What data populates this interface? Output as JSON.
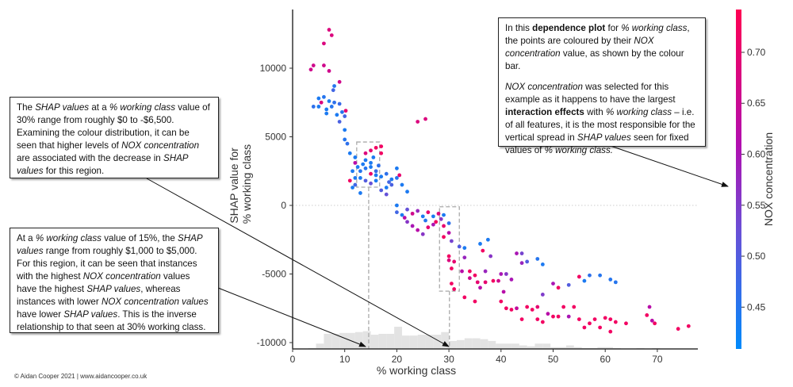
{
  "chart_data": {
    "type": "scatter",
    "xlabel": "% working class",
    "ylabel": [
      "SHAP value for",
      "% working class"
    ],
    "xlim": [
      0,
      80
    ],
    "ylim": [
      -10900,
      14000
    ],
    "xticks": [
      0,
      10,
      20,
      30,
      40,
      50,
      60,
      70
    ],
    "yticks": [
      -10000,
      -5000,
      0,
      5000,
      10000
    ],
    "zero_line": true,
    "colorbar": {
      "label": "NOX concentration",
      "range": [
        0.409,
        0.742
      ],
      "ticks": [
        0.45,
        0.5,
        0.55,
        0.6,
        0.65,
        0.7
      ],
      "colors": [
        "#008afb",
        "#6a4fd6",
        "#b10fb0",
        "#ff0052"
      ]
    },
    "histogram": {
      "color": "#e3e3e3",
      "bin_width": 1.5,
      "bins": [
        [
          3,
          1
        ],
        [
          4.5,
          6
        ],
        [
          6,
          17
        ],
        [
          7.5,
          17
        ],
        [
          9,
          18
        ],
        [
          10.5,
          18
        ],
        [
          12,
          19
        ],
        [
          13.5,
          20
        ],
        [
          15,
          16
        ],
        [
          16.5,
          17
        ],
        [
          18,
          17
        ],
        [
          19.5,
          25
        ],
        [
          21,
          15
        ],
        [
          22.5,
          15
        ],
        [
          24,
          16
        ],
        [
          25.5,
          16
        ],
        [
          27,
          16
        ],
        [
          28.5,
          19
        ],
        [
          30,
          9
        ],
        [
          31.5,
          10
        ],
        [
          33,
          12
        ],
        [
          34.5,
          12
        ],
        [
          36,
          11
        ],
        [
          37.5,
          9
        ],
        [
          39,
          6
        ],
        [
          40.5,
          6
        ],
        [
          42,
          6
        ],
        [
          43.5,
          4
        ],
        [
          45,
          3
        ],
        [
          46.5,
          6
        ],
        [
          48,
          6
        ],
        [
          49.5,
          2
        ],
        [
          51,
          2
        ],
        [
          52.5,
          4
        ],
        [
          54,
          2
        ],
        [
          55.5,
          1
        ],
        [
          57,
          1
        ],
        [
          58.5,
          2
        ],
        [
          60,
          2
        ],
        [
          61.5,
          1
        ],
        [
          66,
          1
        ],
        [
          69,
          1
        ]
      ]
    },
    "highlight_regions": [
      {
        "x": [
          12.3,
          16.7
        ],
        "y": [
          1330,
          4620
        ],
        "marker_x": 14.6
      },
      {
        "x": [
          28.2,
          32.0
        ],
        "y": [
          -6250,
          -100
        ],
        "marker_x": 30.1
      }
    ],
    "points_format": [
      "% working class",
      "SHAP value",
      "NOX concentration"
    ],
    "points": [
      [
        7,
        12800,
        0.68
      ],
      [
        6,
        11800,
        0.68
      ],
      [
        7.5,
        12400,
        0.68
      ],
      [
        4,
        10200,
        0.66
      ],
      [
        3.5,
        9900,
        0.66
      ],
      [
        6,
        10200,
        0.66
      ],
      [
        7,
        9800,
        0.66
      ],
      [
        9,
        9000,
        0.66
      ],
      [
        5,
        7800,
        0.44
      ],
      [
        6,
        7900,
        0.45
      ],
      [
        7,
        7600,
        0.44
      ],
      [
        8,
        7500,
        0.46
      ],
      [
        6.5,
        7000,
        0.44
      ],
      [
        7.5,
        7200,
        0.45
      ],
      [
        5,
        7200,
        0.44
      ],
      [
        4,
        7200,
        0.46
      ],
      [
        9,
        7400,
        0.47
      ],
      [
        9.5,
        6800,
        0.45
      ],
      [
        8.5,
        6600,
        0.44
      ],
      [
        10,
        6500,
        0.48
      ],
      [
        9,
        6100,
        0.49
      ],
      [
        10,
        5500,
        0.44
      ],
      [
        10,
        4800,
        0.45
      ],
      [
        10.5,
        4500,
        0.46
      ],
      [
        7.8,
        8400,
        0.48
      ],
      [
        8,
        8700,
        0.45
      ],
      [
        6.5,
        6700,
        0.44
      ],
      [
        5.5,
        7500,
        0.68
      ],
      [
        10.2,
        6900,
        0.7
      ],
      [
        11,
        3800,
        0.44
      ],
      [
        12,
        3500,
        0.44
      ],
      [
        12,
        3100,
        0.62
      ],
      [
        11.5,
        2500,
        0.44
      ],
      [
        12,
        2000,
        0.44
      ],
      [
        13,
        2500,
        0.45
      ],
      [
        14,
        2700,
        0.45
      ],
      [
        15,
        2800,
        0.44
      ],
      [
        16,
        2500,
        0.47
      ],
      [
        17,
        2100,
        0.44
      ],
      [
        14,
        1800,
        0.5
      ],
      [
        13,
        2000,
        0.44
      ],
      [
        15,
        1600,
        0.52
      ],
      [
        16,
        1800,
        0.44
      ],
      [
        18,
        2300,
        0.46
      ],
      [
        19,
        1900,
        0.44
      ],
      [
        20,
        2000,
        0.45
      ],
      [
        19,
        1500,
        0.49
      ],
      [
        18,
        1300,
        0.44
      ],
      [
        17,
        1100,
        0.5
      ],
      [
        12,
        1500,
        0.48
      ],
      [
        11.5,
        1300,
        0.44
      ],
      [
        14,
        3300,
        0.44
      ],
      [
        15.5,
        3500,
        0.44
      ],
      [
        16,
        4200,
        0.72
      ],
      [
        15,
        4000,
        0.7
      ],
      [
        17,
        4300,
        0.72
      ],
      [
        17,
        3800,
        0.72
      ],
      [
        14,
        3800,
        0.68
      ],
      [
        15,
        2300,
        0.71
      ],
      [
        13,
        900,
        0.44
      ],
      [
        18,
        800,
        0.52
      ],
      [
        20,
        2700,
        0.44
      ],
      [
        20.5,
        2200,
        0.7
      ],
      [
        21,
        1500,
        0.44
      ],
      [
        22,
        1000,
        0.44
      ],
      [
        15,
        3100,
        0.44
      ],
      [
        16.5,
        2900,
        0.46
      ],
      [
        18.5,
        1700,
        0.48
      ],
      [
        11,
        1800,
        0.72
      ],
      [
        13.5,
        3000,
        0.44
      ],
      [
        16,
        2200,
        0.44
      ],
      [
        12.5,
        2800,
        0.44
      ],
      [
        24,
        6100,
        0.68
      ],
      [
        25.5,
        6300,
        0.68
      ],
      [
        20,
        0,
        0.44
      ],
      [
        20,
        -500,
        0.48
      ],
      [
        21,
        -700,
        0.44
      ],
      [
        22,
        -300,
        0.52
      ],
      [
        21.5,
        -900,
        0.62
      ],
      [
        23,
        -600,
        0.66
      ],
      [
        24,
        -400,
        0.58
      ],
      [
        25,
        -800,
        0.44
      ],
      [
        25.5,
        -1100,
        0.45
      ],
      [
        26,
        -500,
        0.7
      ],
      [
        27,
        -800,
        0.44
      ],
      [
        27,
        -1400,
        0.6
      ],
      [
        28,
        -600,
        0.68
      ],
      [
        28.5,
        -1000,
        0.56
      ],
      [
        29,
        -700,
        0.44
      ],
      [
        22,
        -1200,
        0.56
      ],
      [
        23,
        -1500,
        0.6
      ],
      [
        24,
        -1800,
        0.62
      ],
      [
        25,
        -2100,
        0.56
      ],
      [
        26,
        -1600,
        0.7
      ],
      [
        27.5,
        -1200,
        0.72
      ],
      [
        29,
        -1500,
        0.7
      ],
      [
        30,
        -1300,
        0.46
      ],
      [
        30,
        -2000,
        0.62
      ],
      [
        29,
        -2300,
        0.72
      ],
      [
        30.5,
        -2600,
        0.54
      ],
      [
        30,
        -3700,
        0.72
      ],
      [
        30,
        -4000,
        0.68
      ],
      [
        30.5,
        -4600,
        0.72
      ],
      [
        31,
        -4100,
        0.7
      ],
      [
        30.5,
        -5700,
        0.72
      ],
      [
        31,
        -6100,
        0.72
      ],
      [
        32,
        -3000,
        0.5
      ],
      [
        33,
        -3100,
        0.44
      ],
      [
        33,
        -3800,
        0.58
      ],
      [
        32.5,
        -4800,
        0.62
      ],
      [
        34,
        -4800,
        0.72
      ],
      [
        34,
        -5300,
        0.66
      ],
      [
        35,
        -5100,
        0.72
      ],
      [
        35.5,
        -5600,
        0.7
      ],
      [
        36,
        -6000,
        0.62
      ],
      [
        36.5,
        -3300,
        0.72
      ],
      [
        37,
        -4800,
        0.58
      ],
      [
        37,
        -5600,
        0.7
      ],
      [
        36,
        -2800,
        0.44
      ],
      [
        37.5,
        -2500,
        0.44
      ],
      [
        38,
        -3700,
        0.56
      ],
      [
        38.5,
        -5500,
        0.72
      ],
      [
        39.5,
        -5500,
        0.66
      ],
      [
        40,
        -5000,
        0.6
      ],
      [
        41,
        -5000,
        0.56
      ],
      [
        40.5,
        -6300,
        0.62
      ],
      [
        42,
        -5400,
        0.6
      ],
      [
        43,
        -3500,
        0.6
      ],
      [
        44,
        -3500,
        0.54
      ],
      [
        44,
        -4200,
        0.58
      ],
      [
        45,
        -4100,
        0.5
      ],
      [
        47,
        -3900,
        0.45
      ],
      [
        48,
        -4300,
        0.44
      ],
      [
        33,
        -6700,
        0.72
      ],
      [
        35,
        -7000,
        0.72
      ],
      [
        40,
        -7000,
        0.72
      ],
      [
        41,
        -7500,
        0.72
      ],
      [
        42,
        -7600,
        0.72
      ],
      [
        43,
        -7500,
        0.64
      ],
      [
        44,
        -8300,
        0.72
      ],
      [
        45,
        -7400,
        0.72
      ],
      [
        46,
        -7600,
        0.72
      ],
      [
        47,
        -7400,
        0.7
      ],
      [
        47,
        -8300,
        0.72
      ],
      [
        48,
        -8500,
        0.72
      ],
      [
        49,
        -7900,
        0.62
      ],
      [
        50,
        -8100,
        0.72
      ],
      [
        51,
        -8100,
        0.72
      ],
      [
        52,
        -7400,
        0.72
      ],
      [
        53,
        -8100,
        0.6
      ],
      [
        54,
        -7400,
        0.72
      ],
      [
        55,
        -8300,
        0.72
      ],
      [
        56,
        -8900,
        0.72
      ],
      [
        57,
        -8600,
        0.72
      ],
      [
        58,
        -8300,
        0.72
      ],
      [
        59,
        -8900,
        0.72
      ],
      [
        60,
        -8200,
        0.72
      ],
      [
        61,
        -8300,
        0.72
      ],
      [
        61,
        -9200,
        0.72
      ],
      [
        62,
        -8500,
        0.72
      ],
      [
        64,
        -8600,
        0.72
      ],
      [
        68,
        -8000,
        0.72
      ],
      [
        68.5,
        -7400,
        0.62
      ],
      [
        69,
        -8400,
        0.62
      ],
      [
        69.5,
        -8600,
        0.72
      ],
      [
        74,
        -9000,
        0.72
      ],
      [
        76,
        -8800,
        0.72
      ],
      [
        48,
        -6500,
        0.55
      ],
      [
        51,
        -6000,
        0.72
      ],
      [
        53,
        -5800,
        0.5
      ],
      [
        55,
        -5200,
        0.72
      ],
      [
        57,
        -5100,
        0.46
      ],
      [
        59,
        -5100,
        0.45
      ],
      [
        62,
        -5600,
        0.45
      ],
      [
        61,
        -5400,
        0.45
      ],
      [
        56,
        -5500,
        0.44
      ],
      [
        50,
        -5700,
        0.6
      ]
    ]
  },
  "annotations": {
    "top_right": [
      [
        {
          "t": "In this "
        },
        {
          "t": "dependence plot",
          "s": "b"
        },
        {
          "t": " for "
        },
        {
          "t": "% working class",
          "s": "i"
        },
        {
          "t": ", the points are coloured by their "
        },
        {
          "t": "NOX concentration",
          "s": "i"
        },
        {
          "t": " value, as shown by the colour bar."
        }
      ],
      [
        {
          "t": "NOX concentration",
          "s": "i"
        },
        {
          "t": " was selected for this example as it happens to have the largest "
        },
        {
          "t": "interaction effects",
          "s": "b"
        },
        {
          "t": " with "
        },
        {
          "t": "% working class",
          "s": "i"
        },
        {
          "t": " – i.e. of all features, it is the most responsible for the vertical spread in "
        },
        {
          "t": "SHAP values",
          "s": "i"
        },
        {
          "t": " seen for fixed values of "
        },
        {
          "t": "% working class.",
          "s": "i"
        }
      ]
    ],
    "left_top": [
      [
        {
          "t": "The "
        },
        {
          "t": "SHAP values",
          "s": "i"
        },
        {
          "t": " at a "
        },
        {
          "t": "% working class",
          "s": "i"
        },
        {
          "t": " value of 30% range from roughly $0 to -$6,500. Examining the colour distribution, it can be seen that higher levels of "
        },
        {
          "t": "NOX concentration",
          "s": "i"
        },
        {
          "t": " are associated with the decrease in "
        },
        {
          "t": "SHAP values",
          "s": "i"
        },
        {
          "t": " for this region."
        }
      ]
    ],
    "left_bottom": [
      [
        {
          "t": "At a "
        },
        {
          "t": "% working class",
          "s": "i"
        },
        {
          "t": " value of 15%, the "
        },
        {
          "t": "SHAP values",
          "s": "i"
        },
        {
          "t": " range from roughly $1,000 to $5,000. For this region, it can be seen that instances with the highest "
        },
        {
          "t": "NOX concentration",
          "s": "i"
        },
        {
          "t": " values have the highest "
        },
        {
          "t": "SHAP values",
          "s": "i"
        },
        {
          "t": ", whereas instances with lower "
        },
        {
          "t": "NOX concentration values",
          "s": "i"
        },
        {
          "t": " have lower "
        },
        {
          "t": "SHAP values",
          "s": "i"
        },
        {
          "t": ". This is the inverse relationship to that seen at 30% working class."
        }
      ]
    ]
  },
  "footer": "© Aidan Cooper 2021 | www.aidancooper.co.uk"
}
